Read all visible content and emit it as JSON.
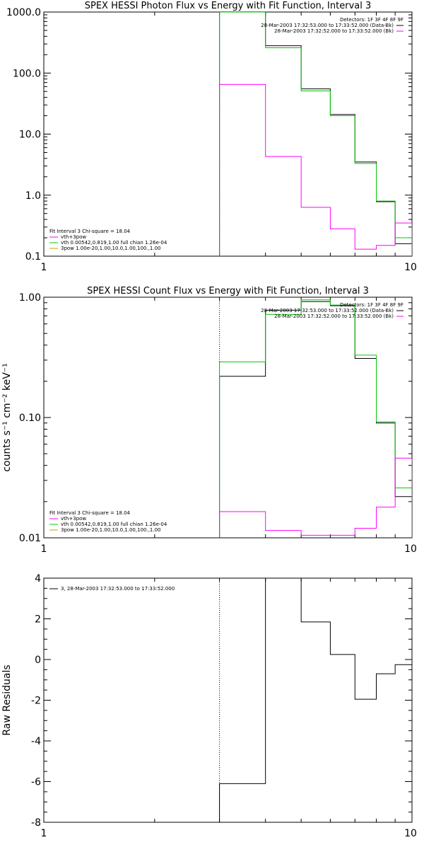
{
  "chart_data": [
    {
      "type": "line",
      "title": "SPEX HESSI Photon Flux vs Energy with Fit Function, Interval 3",
      "ylabel": "",
      "xscale": "log",
      "yscale": "log",
      "xlim": [
        1,
        10
      ],
      "ylim": [
        0.1,
        1000
      ],
      "x_ticks": [
        "1",
        "10"
      ],
      "y_ticks": [
        "0.1",
        "1.0",
        "10.0",
        "100.0",
        "1000.0"
      ],
      "x_edges": [
        3,
        4,
        5,
        6,
        7,
        8,
        9,
        10
      ],
      "series": [
        {
          "name": "vth+3pow",
          "color": "#000000",
          "values": [
            1000,
            280,
            55,
            21,
            3.5,
            0.78,
            0.16
          ]
        },
        {
          "name": "vth",
          "color": "#00c800",
          "values": [
            1000,
            260,
            51,
            20,
            3.3,
            0.8,
            0.2
          ]
        },
        {
          "name": "3pow",
          "color": "#ff00ff",
          "values": [
            65,
            4.3,
            0.63,
            0.28,
            0.13,
            0.15,
            0.35
          ]
        }
      ],
      "fit_label": "Fit Interval 3   Chi-square = 18.04",
      "legend_left": [
        {
          "label": "vth+3pow",
          "color": "#ff00ff"
        },
        {
          "label": "vth 0.00542,0.819,1.00   full chian 1.26e-04",
          "color": "#00c800"
        },
        {
          "label": "3pow 1.00e-20,1.00,10.0,1.00,100.,1.00",
          "color": "#c8a000"
        }
      ],
      "legend_right": {
        "detectors": "Detectors: 1F 3F 4F 8F 9F",
        "entries": [
          {
            "label": "28-Mar-2003 17:32:53.000 to 17:33:52.000 (Data-Bk)",
            "color": "#000000"
          },
          {
            "label": "28-Mar-2003 17:32:52.000 to 17:33:52.000 (Bk)",
            "color": "#ff00ff"
          }
        ]
      }
    },
    {
      "type": "line",
      "title": "SPEX HESSI Count Flux vs Energy with Fit Function, Interval 3",
      "ylabel": "counts s⁻¹ cm⁻² keV⁻¹",
      "xscale": "log",
      "yscale": "log",
      "xlim": [
        1,
        10
      ],
      "ylim": [
        0.01,
        1.0
      ],
      "x_ticks": [
        "1",
        "10"
      ],
      "y_ticks": [
        "0.01",
        "0.10",
        "1.00"
      ],
      "x_edges": [
        3,
        4,
        5,
        6,
        7,
        8,
        9,
        10
      ],
      "series": [
        {
          "name": "Data-Bk",
          "color": "#000000",
          "values": [
            0.22,
            0.78,
            0.92,
            0.85,
            0.31,
            0.09,
            0.022
          ]
        },
        {
          "name": "vth+3pow",
          "color": "#00c800",
          "values": [
            0.29,
            0.72,
            0.95,
            0.86,
            0.33,
            0.092,
            0.026
          ]
        },
        {
          "name": "Bk",
          "color": "#ff00ff",
          "values": [
            0.0165,
            0.0115,
            0.0105,
            0.0105,
            0.012,
            0.018,
            0.046
          ]
        }
      ],
      "fit_label": "Fit Interval 3   Chi-square = 18.04",
      "legend_left": [
        {
          "label": "vth+3pow",
          "color": "#ff00ff"
        },
        {
          "label": "vth 0.00542,0.819,1.00   full chian 1.26e-04",
          "color": "#00c800"
        },
        {
          "label": "3pow 1.00e-20,1.00,10.0,1.00,100.,1.00",
          "color": "#c8a000"
        }
      ],
      "legend_right": {
        "detectors": "Detectors: 1F 3F 4F 8F 9F",
        "entries": [
          {
            "label": "28-Mar-2003 17:32:53.000 to 17:33:52.000 (Data-Bk)",
            "color": "#000000"
          },
          {
            "label": "28-Mar-2003 17:32:52.000 to 17:33:52.000 (Bk)",
            "color": "#ff00ff"
          }
        ]
      }
    },
    {
      "type": "line",
      "title": "",
      "ylabel": "Raw Residuals",
      "xscale": "log",
      "yscale": "linear",
      "xlim": [
        1,
        10
      ],
      "ylim": [
        -8,
        4
      ],
      "x_ticks": [
        "1",
        "10"
      ],
      "y_ticks": [
        "-8",
        "-6",
        "-4",
        "-2",
        "0",
        "2",
        "4"
      ],
      "x_edges": [
        3,
        4,
        5,
        6,
        7,
        8,
        9,
        10
      ],
      "series": [
        {
          "name": "3, 28-Mar-2003 17:32:53.000 to 17:33:52.000",
          "color": "#000000",
          "values": [
            -6.1,
            4.0,
            1.85,
            0.25,
            -1.95,
            -0.7,
            -0.25
          ]
        }
      ],
      "legend_left": [
        {
          "label": "3, 28-Mar-2003 17:32:53.000 to 17:33:52.000",
          "color": "#000000"
        }
      ]
    }
  ]
}
